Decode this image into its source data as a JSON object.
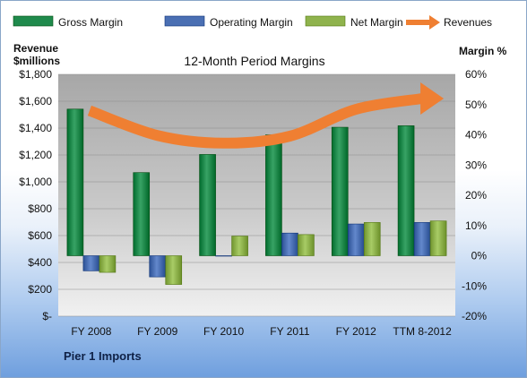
{
  "chart_data": {
    "type": "bar",
    "title": "12-Month Period Margins",
    "left_axis": {
      "label_line1": "Revenue",
      "label_line2": "$millions",
      "range": [
        0,
        1800
      ],
      "tick_labels": [
        "$-",
        "$200",
        "$400",
        "$600",
        "$800",
        "$1,000",
        "$1,200",
        "$1,400",
        "$1,600",
        "$1,800"
      ]
    },
    "right_axis": {
      "label": "Margin %",
      "range": [
        -20,
        60
      ],
      "tick_labels": [
        "-20%",
        "-10%",
        "0%",
        "10%",
        "20%",
        "30%",
        "40%",
        "50%",
        "60%"
      ]
    },
    "categories": [
      "FY 2008",
      "FY 2009",
      "FY 2010",
      "FY 2011",
      "FY 2012",
      "TTM 8-2012"
    ],
    "series": [
      {
        "name": "Gross Margin",
        "axis": "right",
        "color": "#1f8a4c",
        "values": [
          48.5,
          27.5,
          33.5,
          40,
          42.5,
          43
        ]
      },
      {
        "name": "Operating Margin",
        "axis": "right",
        "color": "#4a6fb3",
        "values": [
          -5,
          -7,
          0,
          7.5,
          10.5,
          11
        ]
      },
      {
        "name": "Net Margin",
        "axis": "right",
        "color": "#8fb34d",
        "values": [
          -5.5,
          -9.5,
          6.5,
          7,
          11,
          11.5
        ]
      },
      {
        "name": "Revenues",
        "axis": "left",
        "type": "arrow",
        "color": "#ef7f32",
        "values": [
          1530,
          1345,
          1288,
          1340,
          1540,
          1620
        ]
      }
    ],
    "legend_position": "top",
    "grid": true
  },
  "company_label": "Pier 1 Imports"
}
